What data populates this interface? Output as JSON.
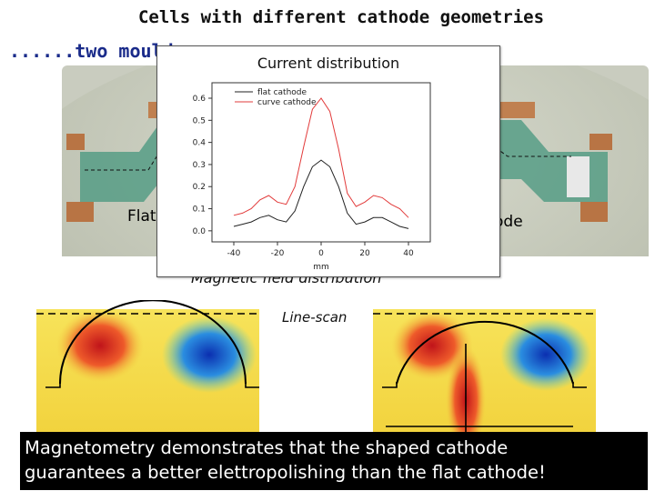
{
  "slide": {
    "title": "Cells with different cathode geometries",
    "subtitle": "......two mould"
  },
  "photo": {
    "label_left": "Flat",
    "label_right": "ode"
  },
  "magnetic_title": "Magnetic field distribution",
  "line_scan_label": "Line-scan",
  "popup": {
    "title": "Current distribution"
  },
  "banner": {
    "line1": "Magnetometry demonstrates that the shaped cathode",
    "line2": "guarantees a better elettropolishing than the flat cathode!"
  },
  "colors": {
    "flat_series": "#222222",
    "curve_series": "#e23b3b",
    "banner_bg": "#000000",
    "subtitle": "#1a2b8a"
  },
  "chart_data": {
    "type": "line",
    "title": "",
    "xlabel": "mm",
    "ylabel": "",
    "xlim": [
      -50,
      50
    ],
    "ylim": [
      -0.05,
      0.67
    ],
    "x_ticks": [
      -40,
      -20,
      0,
      20,
      40
    ],
    "y_ticks": [
      0.0,
      0.1,
      0.2,
      0.3,
      0.4,
      0.5,
      0.6
    ],
    "legend_position": "top-left",
    "series": [
      {
        "name": "flat cathode",
        "color": "#222222",
        "x": [
          -40,
          -36,
          -32,
          -28,
          -24,
          -20,
          -16,
          -12,
          -8,
          -4,
          0,
          4,
          8,
          12,
          16,
          20,
          24,
          28,
          32,
          36,
          40
        ],
        "y": [
          0.02,
          0.03,
          0.04,
          0.06,
          0.07,
          0.05,
          0.04,
          0.09,
          0.2,
          0.29,
          0.32,
          0.29,
          0.2,
          0.08,
          0.03,
          0.04,
          0.06,
          0.06,
          0.04,
          0.02,
          0.01
        ]
      },
      {
        "name": "curve cathode",
        "color": "#e23b3b",
        "x": [
          -40,
          -36,
          -32,
          -28,
          -24,
          -20,
          -16,
          -12,
          -8,
          -4,
          0,
          4,
          8,
          12,
          16,
          20,
          24,
          28,
          32,
          36,
          40
        ],
        "y": [
          0.07,
          0.08,
          0.1,
          0.14,
          0.16,
          0.13,
          0.12,
          0.2,
          0.38,
          0.55,
          0.6,
          0.54,
          0.37,
          0.17,
          0.11,
          0.13,
          0.16,
          0.15,
          0.12,
          0.1,
          0.06
        ]
      }
    ]
  }
}
